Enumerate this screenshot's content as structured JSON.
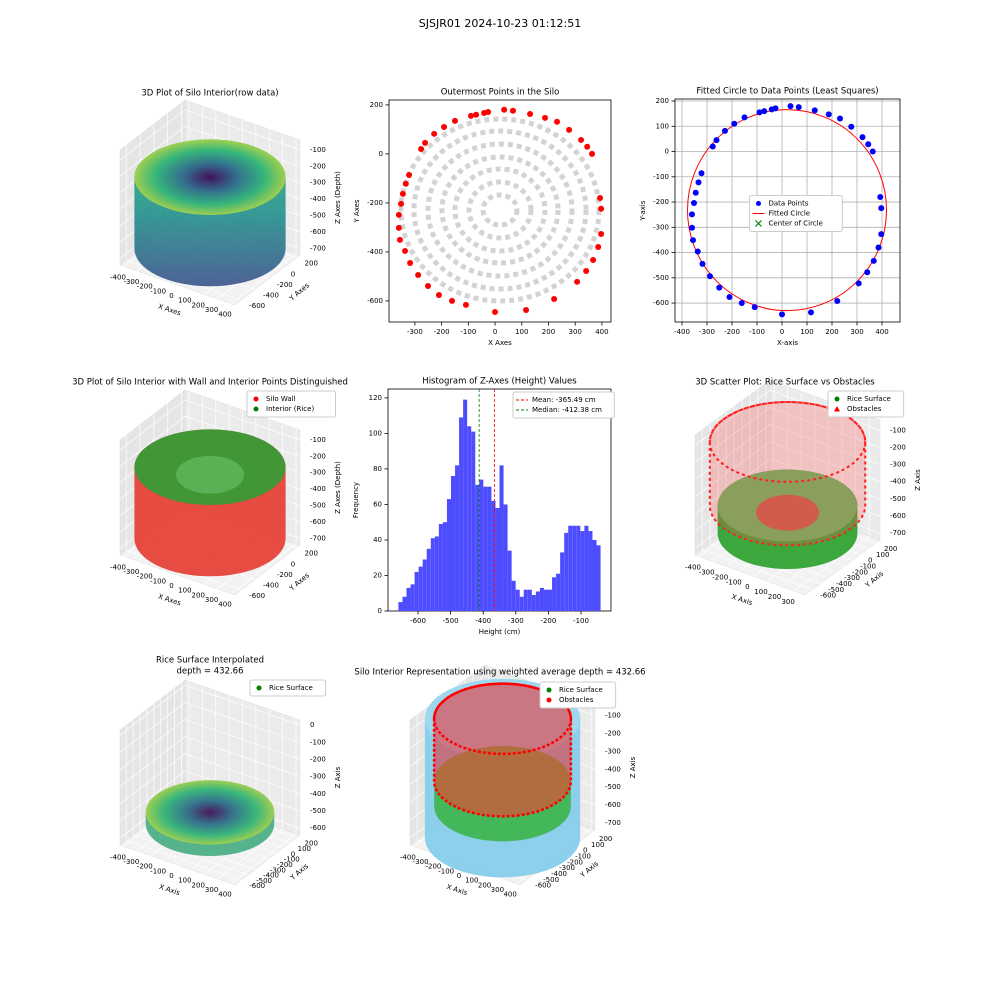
{
  "title": "SJSJR01 2024-10-23 01:12:51",
  "chart_data": [
    {
      "type": "scatter3d",
      "title": "3D Plot of Silo Interior(row data)",
      "xlabel": "X Axes",
      "ylabel": "Y Axes",
      "zlabel": "Z Axes (Depth)",
      "xlim": [
        -430,
        430
      ],
      "ylim": [
        -690,
        250
      ],
      "zlim": [
        -740,
        -40
      ],
      "xticks": [
        -400,
        -300,
        -200,
        -100,
        0,
        100,
        200,
        300,
        400
      ],
      "yticks": [
        -600,
        -400,
        -200,
        0,
        200
      ],
      "zticks": [
        -700,
        -600,
        -500,
        -400,
        -300,
        -200,
        -100
      ]
    },
    {
      "type": "scatter",
      "title": "Outermost Points in the Silo",
      "xlabel": "X Axes",
      "ylabel": "Y Axes",
      "xlim": [
        -397,
        434
      ],
      "ylim": [
        -686,
        220
      ],
      "xticks": [
        -300,
        -200,
        -100,
        0,
        100,
        200,
        300,
        400
      ],
      "yticks": [
        -600,
        -400,
        -200,
        0,
        200
      ],
      "series": [
        {
          "color": "#ff0000",
          "x": [
            -90,
            -71,
            -41,
            -26,
            34,
            67,
            131,
            187,
            232,
            277,
            322,
            345,
            363,
            393,
            397,
            397,
            386,
            367,
            341,
            307,
            221,
            116,
            0,
            -109,
            -161,
            -210,
            -251,
            -288,
            -318,
            -337,
            -356,
            -360,
            -360,
            -352,
            -345,
            -334,
            -322,
            -277,
            -262,
            -228,
            -191,
            -150
          ],
          "y": [
            155,
            160,
            167,
            171,
            180,
            176,
            163,
            147,
            131,
            98,
            57,
            29,
            0,
            -180,
            -224,
            -327,
            -380,
            -433,
            -478,
            -522,
            -592,
            -637,
            -645,
            -616,
            -600,
            -576,
            -539,
            -494,
            -445,
            -396,
            -351,
            -302,
            -249,
            -204,
            -163,
            -122,
            -86,
            20,
            45,
            82,
            110,
            135
          ]
        }
      ]
    },
    {
      "type": "scatter",
      "title": "Fitted Circle to Data Points (Least Squares)",
      "xlabel": "X-axis",
      "ylabel": "Y-axis",
      "xlim": [
        -428,
        472
      ],
      "ylim": [
        -675,
        208
      ],
      "grid": true,
      "legend": "center",
      "xticks": [
        -400,
        -300,
        -200,
        -100,
        0,
        100,
        200,
        300,
        400
      ],
      "yticks": [
        -600,
        -500,
        -400,
        -300,
        -200,
        -100,
        0,
        100,
        200
      ],
      "series": [
        {
          "name": "Data Points",
          "color": "#0000ff",
          "x": [
            -90,
            -71,
            -41,
            -26,
            34,
            67,
            131,
            187,
            232,
            277,
            322,
            345,
            363,
            393,
            397,
            397,
            386,
            367,
            341,
            307,
            221,
            116,
            0,
            -109,
            -161,
            -210,
            -251,
            -288,
            -318,
            -337,
            -356,
            -360,
            -360,
            -352,
            -345,
            -334,
            -322,
            -277,
            -262,
            -228,
            -191,
            -150
          ],
          "y": [
            155,
            160,
            167,
            171,
            180,
            176,
            163,
            147,
            131,
            98,
            57,
            29,
            0,
            -180,
            -224,
            -327,
            -380,
            -433,
            -478,
            -522,
            -592,
            -637,
            -645,
            -616,
            -600,
            -576,
            -539,
            -494,
            -445,
            -396,
            -351,
            -302,
            -249,
            -204,
            -163,
            -122,
            -86,
            20,
            45,
            82,
            110,
            135
          ]
        }
      ],
      "circle": {
        "name": "Fitted Circle",
        "color": "#ff0000",
        "center": [
          20,
          -232
        ],
        "radius": 398
      },
      "center_marker": {
        "name": "Center of Circle",
        "color": "#008000"
      }
    },
    {
      "type": "scatter3d",
      "title": "3D Plot of Silo Interior with Wall and Interior Points Distinguished",
      "xlabel": "X Axes",
      "ylabel": "Y Axes",
      "zlabel": "Z Axes (Depth)",
      "xlim": [
        -430,
        430
      ],
      "ylim": [
        -690,
        250
      ],
      "zlim": [
        -740,
        -40
      ],
      "xticks": [
        -400,
        -300,
        -200,
        -100,
        0,
        100,
        200,
        300,
        400
      ],
      "yticks": [
        -600,
        -400,
        -200,
        0,
        200
      ],
      "zticks": [
        -700,
        -600,
        -500,
        -400,
        -300,
        -200,
        -100
      ],
      "legend": "upper right",
      "series": [
        {
          "name": "Silo Wall",
          "color": "#ff0000"
        },
        {
          "name": "Interior (Rice)",
          "color": "#008000"
        }
      ]
    },
    {
      "type": "histogram",
      "title": "Histogram of Z-Axes (Height) Values",
      "xlabel": "Height (cm)",
      "ylabel": "Frequency",
      "xlim": [
        -692,
        -8
      ],
      "ylim": [
        0,
        125
      ],
      "xticks": [
        -600,
        -500,
        -400,
        -300,
        -200,
        -100
      ],
      "yticks": [
        0,
        20,
        40,
        60,
        80,
        100,
        120
      ],
      "color": "#4d4dff",
      "legend": "upper right",
      "bins": [
        -660,
        -647.6,
        -635.2,
        -622.8,
        -610.4,
        -598,
        -585.6,
        -573.2,
        -560.8,
        -548.4,
        -536,
        -523.6,
        -511.2,
        -498.8,
        -486.4,
        -474,
        -461.6,
        -449.2,
        -436.8,
        -424.4,
        -412,
        -399.6,
        -387.2,
        -374.8,
        -362.4,
        -350,
        -337.6,
        -325.2,
        -312.8,
        -300.4,
        -288,
        -275.6,
        -263.2,
        -250.8,
        -238.4,
        -226,
        -213.6,
        -201.2,
        -188.8,
        -176.4,
        -164,
        -151.6,
        -139.2,
        -126.8,
        -114.4,
        -102,
        -89.6,
        -77.2,
        -64.8,
        -52.4,
        -40
      ],
      "values": [
        5,
        8,
        13,
        15,
        22,
        25,
        29,
        35,
        41,
        42,
        49,
        50,
        63,
        76,
        82,
        109,
        119,
        104,
        101,
        71,
        74,
        70,
        70,
        62,
        58,
        82,
        60,
        34,
        17,
        12,
        8,
        12,
        12,
        9,
        11,
        13,
        12,
        12,
        19,
        21,
        33,
        44,
        48,
        48,
        48,
        45,
        48,
        45,
        40,
        37
      ],
      "lines": [
        {
          "value": -365.49,
          "label": "Mean: -365.49 cm",
          "color": "#ff0000"
        },
        {
          "value": -412.38,
          "label": "Median: -412.38 cm",
          "color": "#008000"
        }
      ]
    },
    {
      "type": "scatter3d",
      "title": "3D Scatter Plot: Rice Surface vs Obstacles",
      "xlabel": "X Axis",
      "ylabel": "Y Axis",
      "zlabel": "Z Axis",
      "xlim": [
        -430,
        380
      ],
      "ylim": [
        -690,
        250
      ],
      "zlim": [
        -740,
        -40
      ],
      "xticks": [
        -400,
        -300,
        -200,
        -100,
        0,
        100,
        200,
        300
      ],
      "yticks": [
        -600,
        -500,
        -400,
        -300,
        -200,
        -100,
        0,
        100,
        200
      ],
      "zticks": [
        -700,
        -600,
        -500,
        -400,
        -300,
        -200,
        -100
      ],
      "legend": "upper right",
      "series": [
        {
          "name": "Rice Surface",
          "color": "#008000",
          "marker": "circle"
        },
        {
          "name": "Obstacles",
          "color": "#ff0000",
          "marker": "triangle"
        }
      ]
    },
    {
      "type": "scatter3d",
      "title": [
        "Rice Surface Interpolated",
        "depth = 432.66"
      ],
      "xlabel": "X Axis",
      "ylabel": "Y Axis",
      "zlabel": "Z Axis",
      "xlim": [
        -430,
        430
      ],
      "ylim": [
        -690,
        250
      ],
      "zlim": [
        -640,
        30
      ],
      "xticks": [
        -400,
        -300,
        -200,
        -100,
        0,
        100,
        200,
        300,
        400
      ],
      "yticks": [
        -600,
        -500,
        -400,
        -300,
        -200,
        -100,
        0,
        100,
        200
      ],
      "zticks": [
        -600,
        -500,
        -400,
        -300,
        -200,
        -100,
        0
      ],
      "legend": "upper right",
      "series": [
        {
          "name": "Rice Surface",
          "color": "#008000",
          "marker": "circle"
        }
      ]
    },
    {
      "type": "scatter3d",
      "title": "Silo Interior Representation using weighted average depth = 432.66",
      "xlabel": "X Axis",
      "ylabel": "Y Axis",
      "zlabel": "Z Axis",
      "xlim": [
        -430,
        430
      ],
      "ylim": [
        -690,
        250
      ],
      "zlim": [
        -740,
        -40
      ],
      "xticks": [
        -400,
        -300,
        -200,
        -100,
        0,
        100,
        200,
        300,
        400
      ],
      "yticks": [
        -600,
        -500,
        -400,
        -300,
        -200,
        -100,
        0,
        100,
        200
      ],
      "zticks": [
        -700,
        -600,
        -500,
        -400,
        -300,
        -200,
        -100
      ],
      "legend": "upper right",
      "series": [
        {
          "name": "Rice Surface",
          "color": "#008000",
          "marker": "circle"
        },
        {
          "name": "Obstacles",
          "color": "#ff0000",
          "marker": "circle"
        }
      ]
    }
  ]
}
